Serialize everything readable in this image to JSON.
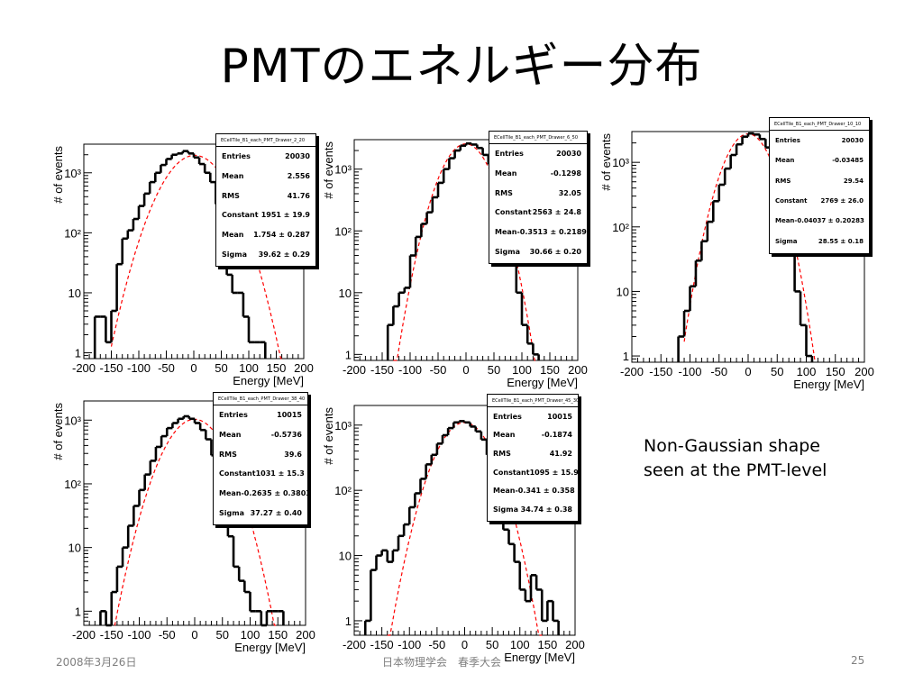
{
  "slide": {
    "title": "PMTのエネルギー分布",
    "note_line1": "Non-Gaussian shape",
    "note_line2": "seen at the PMT-level",
    "footer_date": "2008年3月26日",
    "footer_center": "日本物理学会　春季大会",
    "footer_page": "25"
  },
  "colors": {
    "histogram": "#000000",
    "fit": "#ff0000"
  },
  "chart_data": [
    {
      "type": "histogram",
      "xlabel": "Energy [MeV]",
      "ylabel": "# of events",
      "xlim": [
        -200,
        200
      ],
      "ylim": [
        0.8,
        3000
      ],
      "yscale": "log",
      "xticks": [
        -200,
        -150,
        -100,
        -50,
        0,
        50,
        100,
        150,
        200
      ],
      "yticks": [
        {
          "value": 1,
          "label": "1"
        },
        {
          "value": 10,
          "label": "10"
        },
        {
          "value": 100,
          "label": "10²"
        },
        {
          "value": 1000,
          "label": "10³"
        }
      ],
      "bin_width": 10,
      "bin_edges_start": -180,
      "counts": [
        4,
        4,
        1.5,
        5,
        30,
        80,
        110,
        170,
        280,
        450,
        700,
        1000,
        1350,
        1700,
        2000,
        2100,
        2300,
        2100,
        1800,
        1400,
        1000,
        700,
        300,
        80,
        20,
        10,
        10,
        4,
        1.5,
        1.5,
        1.5
      ],
      "fit": {
        "function": "gaus",
        "constant": 1951,
        "mean": 1.754,
        "sigma": 39.62
      },
      "fit_drawn_range": [
        -150,
        160
      ],
      "stats": {
        "title": "ECellTile_B1_each_PMT_Drawer_2_20",
        "rows": [
          {
            "label": "Entries",
            "value": "20030"
          },
          {
            "label": "Mean",
            "value": "2.556"
          },
          {
            "label": "RMS",
            "value": "41.76"
          },
          {
            "label": "Constant",
            "value": "1951 ± 19.9"
          },
          {
            "label": "Mean",
            "value": "1.754 ± 0.287"
          },
          {
            "label": "Sigma",
            "value": "39.62 ± 0.29"
          }
        ]
      }
    },
    {
      "type": "histogram",
      "xlabel": "Energy [MeV]",
      "ylabel": "# of events",
      "xlim": [
        -200,
        200
      ],
      "ylim": [
        0.8,
        3000
      ],
      "yscale": "log",
      "xticks": [
        -200,
        -150,
        -100,
        -50,
        0,
        50,
        100,
        150,
        200
      ],
      "yticks": [
        {
          "value": 1,
          "label": "1"
        },
        {
          "value": 10,
          "label": "10"
        },
        {
          "value": 100,
          "label": "10²"
        },
        {
          "value": 1000,
          "label": "10³"
        }
      ],
      "bin_width": 10,
      "bin_edges_start": -140,
      "counts": [
        3,
        6,
        10,
        12,
        40,
        80,
        130,
        200,
        350,
        600,
        1000,
        1500,
        2000,
        2400,
        2600,
        2500,
        2200,
        1700,
        1200,
        700,
        300,
        100,
        30,
        10,
        3,
        1.5,
        1
      ],
      "fit": {
        "function": "gaus",
        "constant": 2563,
        "mean": -0.3513,
        "sigma": 30.66
      },
      "fit_drawn_range": [
        -130,
        125
      ],
      "stats": {
        "title": "ECellTile_B1_each_PMT_Drawer_6_50",
        "rows": [
          {
            "label": "Entries",
            "value": "20030"
          },
          {
            "label": "Mean",
            "value": "-0.1298"
          },
          {
            "label": "RMS",
            "value": "32.05"
          },
          {
            "label": "Constant",
            "value": "2563 ± 24.8"
          },
          {
            "label": "Mean",
            "value": "-0.3513 ± 0.2189"
          },
          {
            "label": "Sigma",
            "value": "30.66 ± 0.20"
          }
        ]
      }
    },
    {
      "type": "histogram",
      "xlabel": "Energy [MeV]",
      "ylabel": "# of events",
      "xlim": [
        -200,
        200
      ],
      "ylim": [
        0.8,
        3000
      ],
      "yscale": "log",
      "xticks": [
        -200,
        -150,
        -100,
        -50,
        0,
        50,
        100,
        150,
        200
      ],
      "yticks": [
        {
          "value": 1,
          "label": "1"
        },
        {
          "value": 10,
          "label": "10"
        },
        {
          "value": 100,
          "label": "10²"
        },
        {
          "value": 1000,
          "label": "10³"
        }
      ],
      "bin_width": 10,
      "bin_edges_start": -120,
      "counts": [
        2,
        5,
        12,
        30,
        60,
        120,
        250,
        450,
        800,
        1300,
        1900,
        2500,
        2800,
        2700,
        2300,
        1700,
        1100,
        550,
        200,
        50,
        10,
        3,
        1
      ],
      "fit": {
        "function": "gaus",
        "constant": 2769,
        "mean": -0.04037,
        "sigma": 28.55
      },
      "fit_drawn_range": [
        -110,
        115
      ],
      "stats": {
        "title": "ECellTile_B1_each_PMT_Drawer_10_10",
        "rows": [
          {
            "label": "Entries",
            "value": "20030"
          },
          {
            "label": "Mean",
            "value": "-0.03485"
          },
          {
            "label": "RMS",
            "value": "29.54"
          },
          {
            "label": "Constant",
            "value": "2769 ± 26.0"
          },
          {
            "label": "Mean",
            "value": "-0.04037 ± 0.20283"
          },
          {
            "label": "Sigma",
            "value": "28.55 ± 0.18"
          }
        ]
      }
    },
    {
      "type": "histogram",
      "xlabel": "Energy [MeV]",
      "ylabel": "# of events",
      "xlim": [
        -200,
        200
      ],
      "ylim": [
        0.6,
        2000
      ],
      "yscale": "log",
      "xticks": [
        -200,
        -150,
        -100,
        -50,
        0,
        50,
        100,
        150,
        200
      ],
      "yticks": [
        {
          "value": 1,
          "label": "1"
        },
        {
          "value": 10,
          "label": "10"
        },
        {
          "value": 100,
          "label": "10²"
        },
        {
          "value": 1000,
          "label": "10³"
        }
      ],
      "bin_width": 10,
      "bin_edges_start": -170,
      "counts": [
        1,
        0.6,
        2,
        5,
        10,
        22,
        45,
        80,
        140,
        230,
        380,
        560,
        750,
        900,
        1050,
        1150,
        1050,
        900,
        700,
        500,
        280,
        120,
        40,
        15,
        5,
        3,
        2,
        1,
        1,
        0.6,
        1,
        1,
        1
      ],
      "fit": {
        "function": "gaus",
        "constant": 1031,
        "mean": -0.2635,
        "sigma": 37.27
      },
      "fit_drawn_range": [
        -145,
        150
      ],
      "stats": {
        "title": "ECellTile_B1_each_PMT_Drawer_38_40",
        "rows": [
          {
            "label": "Entries",
            "value": "10015"
          },
          {
            "label": "Mean",
            "value": "-0.5736"
          },
          {
            "label": "RMS",
            "value": "39.6"
          },
          {
            "label": "Constant",
            "value": "1031 ± 15.3"
          },
          {
            "label": "Mean",
            "value": "-0.2635 ± 0.3803"
          },
          {
            "label": "Sigma",
            "value": "37.27 ± 0.40"
          }
        ]
      }
    },
    {
      "type": "histogram",
      "xlabel": "Energy [MeV]",
      "ylabel": "# of events",
      "xlim": [
        -200,
        200
      ],
      "ylim": [
        0.6,
        2000
      ],
      "yscale": "log",
      "xticks": [
        -200,
        -150,
        -100,
        -50,
        0,
        50,
        100,
        150,
        200
      ],
      "yticks": [
        {
          "value": 1,
          "label": "1"
        },
        {
          "value": 10,
          "label": "10"
        },
        {
          "value": 100,
          "label": "10²"
        },
        {
          "value": 1000,
          "label": "10³"
        }
      ],
      "bin_width": 10,
      "bin_edges_start": -180,
      "counts": [
        1,
        6,
        10,
        12,
        8,
        12,
        20,
        30,
        55,
        90,
        150,
        250,
        350,
        520,
        700,
        900,
        1100,
        1150,
        1100,
        950,
        800,
        600,
        350,
        150,
        60,
        25,
        15,
        8,
        3,
        2,
        5,
        3,
        1,
        2,
        1
      ],
      "fit": {
        "function": "gaus",
        "constant": 1095,
        "mean": -0.341,
        "sigma": 34.74
      },
      "fit_drawn_range": [
        -140,
        140
      ],
      "stats": {
        "title": "ECellTile_B1_each_PMT_Drawer_45_30",
        "rows": [
          {
            "label": "Entries",
            "value": "10015"
          },
          {
            "label": "Mean",
            "value": "-0.1874"
          },
          {
            "label": "RMS",
            "value": "41.92"
          },
          {
            "label": "Constant",
            "value": "1095 ± 15.9"
          },
          {
            "label": "Mean",
            "value": "-0.341 ± 0.358"
          },
          {
            "label": "Sigma",
            "value": "34.74 ± 0.38"
          }
        ]
      }
    }
  ]
}
